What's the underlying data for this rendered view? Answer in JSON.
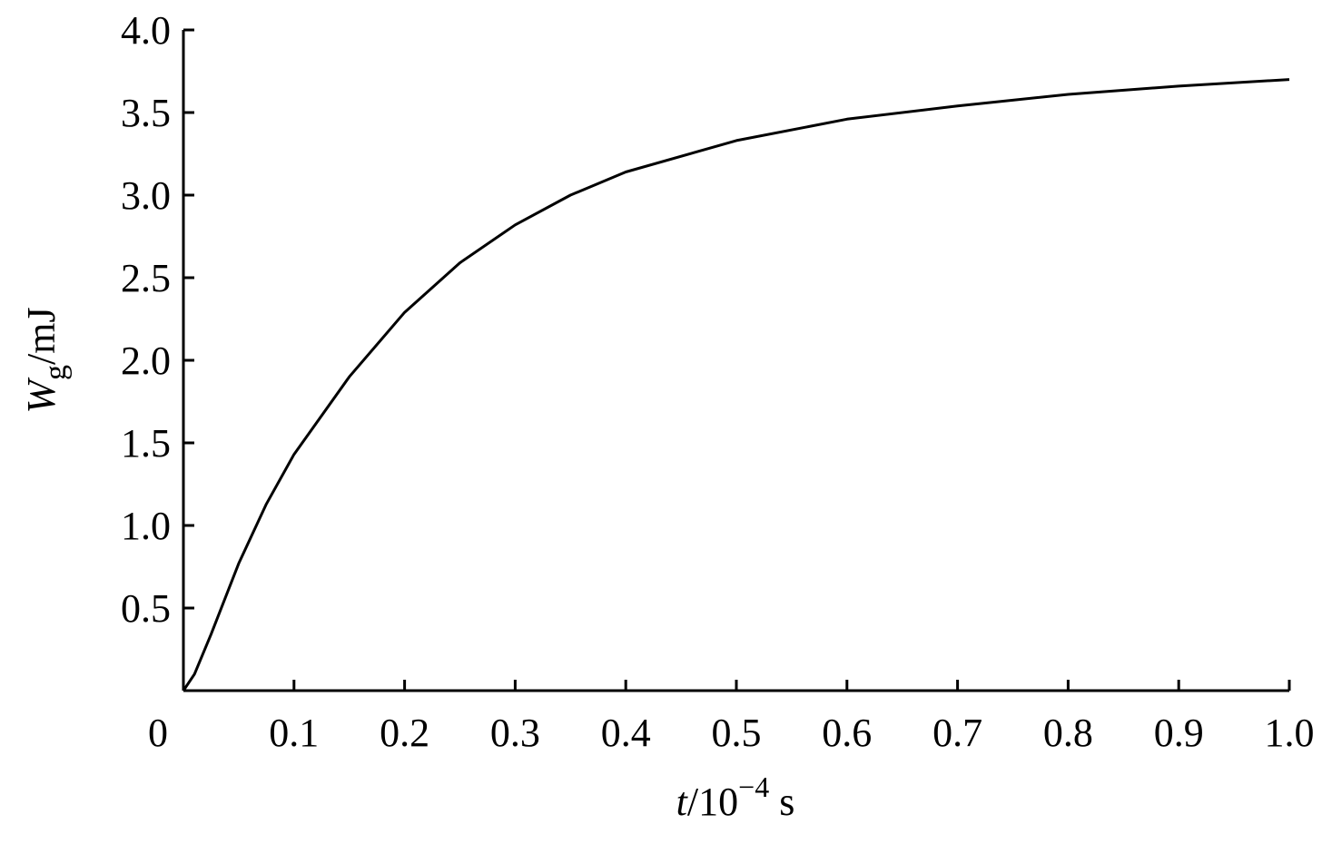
{
  "chart_data": {
    "type": "line",
    "xlabel": [
      "t",
      "/10",
      "−4",
      " s"
    ],
    "ylabel": [
      "W",
      "g",
      "/mJ"
    ],
    "x": [
      0,
      0.01,
      0.025,
      0.05,
      0.075,
      0.1,
      0.15,
      0.2,
      0.25,
      0.3,
      0.35,
      0.4,
      0.5,
      0.6,
      0.7,
      0.8,
      0.9,
      1.0
    ],
    "values": [
      0,
      0.1,
      0.34,
      0.77,
      1.13,
      1.43,
      1.9,
      2.29,
      2.59,
      2.82,
      3.0,
      3.14,
      3.33,
      3.46,
      3.54,
      3.61,
      3.66,
      3.7
    ],
    "color": "#000000",
    "xlim": [
      0,
      1.0
    ],
    "ylim": [
      0,
      4.0
    ],
    "xticks": [
      0,
      0.1,
      0.2,
      0.3,
      0.4,
      0.5,
      0.6,
      0.7,
      0.8,
      0.9,
      {
        "value": 1,
        "label": "1.0"
      }
    ],
    "yticks": [
      0.5,
      {
        "value": 1,
        "label": "1.0"
      },
      1.5,
      {
        "value": 2,
        "label": "2.0"
      },
      2.5,
      {
        "value": 3,
        "label": "3.0"
      },
      3.5,
      {
        "value": 4,
        "label": "4.0"
      }
    ],
    "grid": false
  }
}
